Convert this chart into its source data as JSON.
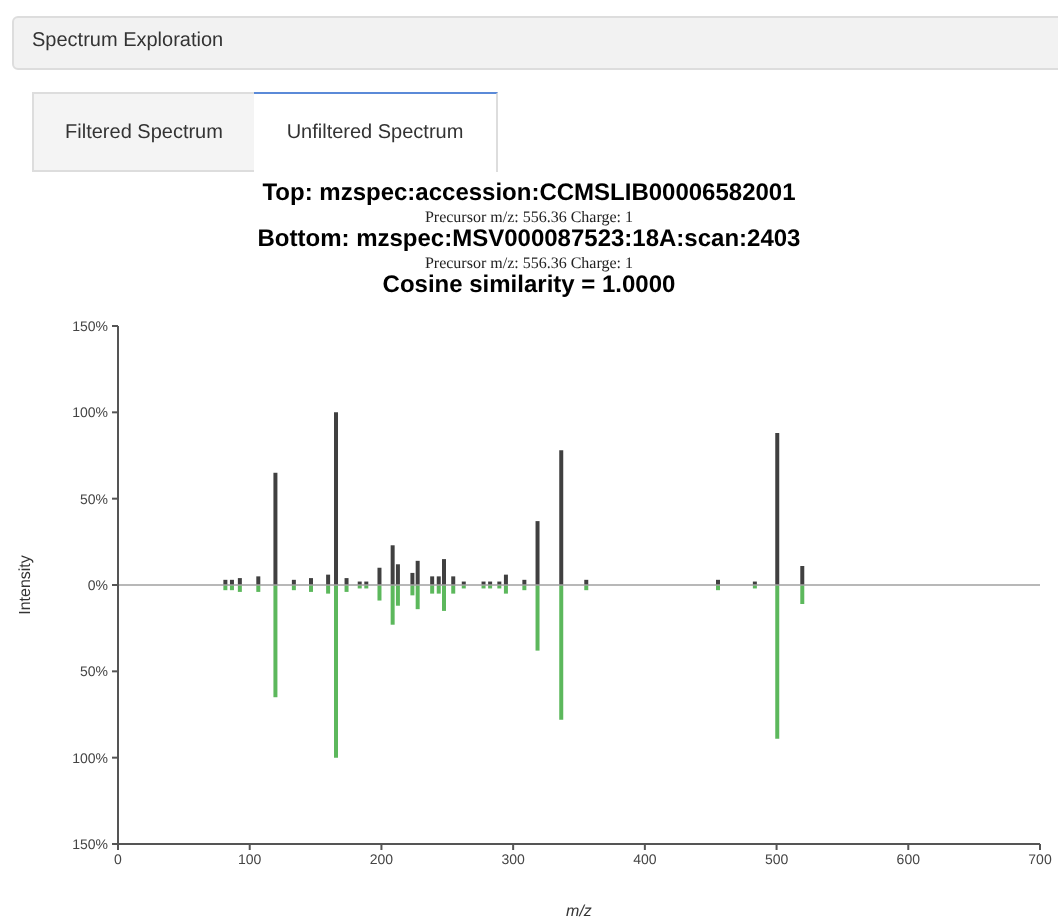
{
  "chart_data": {
    "type": "bar",
    "title": "Top: mzspec:accession:CCMSLIB00006582001",
    "annotations": [
      "Spectrum Exploration",
      "Filtered Spectrum",
      "Unfiltered Spectrum",
      "Precursor m/z: 556.36 Charge: 1",
      "Bottom: mzspec:MSV000087523:18A:scan:2403",
      "Precursor m/z: 556.36 Charge: 1",
      "Cosine similarity = 1.0000"
    ],
    "xlabel": "m/z",
    "ylabel": "Intensity",
    "x": [
      82,
      87,
      93,
      107,
      120,
      134,
      147,
      160,
      166,
      174,
      184,
      189,
      199,
      209,
      213,
      224,
      228,
      239,
      244,
      248,
      255,
      263,
      278,
      283,
      290,
      295,
      309,
      319,
      337,
      356,
      456,
      484,
      501,
      520
    ],
    "series": [
      {
        "color": "#404040",
        "values": [
          3,
          3,
          4,
          5,
          65,
          3,
          4,
          6,
          100,
          4,
          2,
          2,
          10,
          23,
          12,
          7,
          14,
          5,
          5,
          15,
          5,
          2,
          2,
          2,
          2,
          6,
          3,
          37,
          78,
          3,
          3,
          2,
          88,
          11
        ]
      },
      {
        "color": "#5cb85c",
        "values": [
          -3,
          -3,
          -4,
          -4,
          -65,
          -3,
          -4,
          -5,
          -100,
          -4,
          -2,
          -2,
          -9,
          -23,
          -12,
          -6,
          -14,
          -5,
          -5,
          -15,
          -5,
          -2,
          -2,
          -2,
          -2,
          -5,
          -3,
          -38,
          -78,
          -3,
          -3,
          -2,
          -89,
          -11
        ]
      }
    ],
    "xlim": [
      0,
      700
    ],
    "xticks": [
      0,
      100,
      200,
      300,
      400,
      500,
      600,
      700
    ],
    "ylim": [
      -150,
      150
    ],
    "yticks": [
      {
        "value": -150,
        "label": "150%"
      },
      {
        "value": -100,
        "label": "100%"
      },
      {
        "value": -50,
        "label": "50%"
      },
      {
        "value": 0,
        "label": "0%"
      },
      {
        "value": 50,
        "label": "50%"
      },
      {
        "value": 100,
        "label": "100%"
      },
      {
        "value": 150,
        "label": "150%"
      }
    ],
    "ref_lines": [
      {
        "axis": "y",
        "value": 0,
        "color": "#a0a0a0"
      }
    ],
    "grid": false,
    "legend": false
  }
}
